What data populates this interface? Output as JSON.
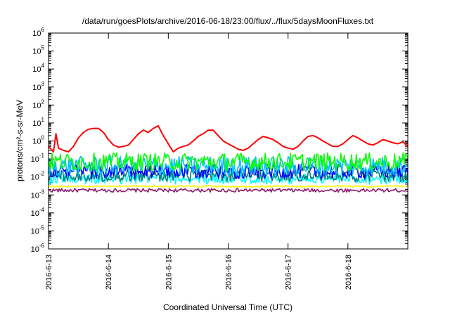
{
  "chart_data": {
    "type": "line",
    "title": "/data/run/goesPlots/archive/2016-06-18/23:00/flux/../flux/5daysMoonFluxes.txt",
    "xlabel": "Coordinated Universal Time (UTC)",
    "ylabel": "protons/cm²-s-sr-MeV",
    "x_axis": {
      "type": "date",
      "range": [
        "2016-06-13",
        "2016-06-19"
      ],
      "ticks": [
        "2016-6-13",
        "2016-6-14",
        "2016-6-15",
        "2016-6-16",
        "2016-6-17",
        "2016-6-18"
      ]
    },
    "y_axis": {
      "scale": "log",
      "range": [
        1e-06,
        1000000.0
      ],
      "ticks": [
        {
          "base": "10",
          "exp": "-6"
        },
        {
          "base": "10",
          "exp": "-5"
        },
        {
          "base": "10",
          "exp": "-4"
        },
        {
          "base": "10",
          "exp": "-3"
        },
        {
          "base": "10",
          "exp": "-2"
        },
        {
          "base": "10",
          "exp": "-1"
        },
        {
          "base": "10",
          "exp": "0"
        },
        {
          "base": "10",
          "exp": "1"
        },
        {
          "base": "10",
          "exp": "2"
        },
        {
          "base": "10",
          "exp": "3"
        },
        {
          "base": "10",
          "exp": "4"
        },
        {
          "base": "10",
          "exp": "5"
        },
        {
          "base": "10",
          "exp": "6"
        }
      ]
    },
    "grid": false,
    "legend": "none",
    "series": [
      {
        "color": "#ff0000",
        "values": [
          [
            "2016-06-13 00:00",
            0.5
          ],
          [
            "2016-06-13 02:00",
            0.25
          ],
          [
            "2016-06-13 03:00",
            2.5
          ],
          [
            "2016-06-13 04:00",
            0.4
          ],
          [
            "2016-06-13 06:00",
            0.3
          ],
          [
            "2016-06-13 08:00",
            0.25
          ],
          [
            "2016-06-13 10:00",
            0.5
          ],
          [
            "2016-06-13 12:00",
            1.5
          ],
          [
            "2016-06-13 14:00",
            3
          ],
          [
            "2016-06-13 16:00",
            4.5
          ],
          [
            "2016-06-13 18:00",
            5
          ],
          [
            "2016-06-13 20:00",
            5
          ],
          [
            "2016-06-13 22:00",
            3
          ],
          [
            "2016-06-14 00:00",
            1.2
          ],
          [
            "2016-06-14 02:00",
            0.6
          ],
          [
            "2016-06-14 04:00",
            0.45
          ],
          [
            "2016-06-14 06:00",
            0.5
          ],
          [
            "2016-06-14 08:00",
            0.6
          ],
          [
            "2016-06-14 10:00",
            1.2
          ],
          [
            "2016-06-14 12:00",
            2.5
          ],
          [
            "2016-06-14 14:00",
            4
          ],
          [
            "2016-06-14 16:00",
            3
          ],
          [
            "2016-06-14 18:00",
            5
          ],
          [
            "2016-06-14 20:00",
            7
          ],
          [
            "2016-06-14 22:00",
            2
          ],
          [
            "2016-06-15 00:00",
            0.7
          ],
          [
            "2016-06-15 02:00",
            0.25
          ],
          [
            "2016-06-15 04:00",
            0.4
          ],
          [
            "2016-06-15 06:00",
            0.5
          ],
          [
            "2016-06-15 08:00",
            0.6
          ],
          [
            "2016-06-15 10:00",
            1
          ],
          [
            "2016-06-15 12:00",
            1.8
          ],
          [
            "2016-06-15 14:00",
            2.5
          ],
          [
            "2016-06-15 16:00",
            4
          ],
          [
            "2016-06-15 18:00",
            4
          ],
          [
            "2016-06-15 20:00",
            2
          ],
          [
            "2016-06-15 22:00",
            1
          ],
          [
            "2016-06-16 00:00",
            0.7
          ],
          [
            "2016-06-16 02:00",
            0.5
          ],
          [
            "2016-06-16 04:00",
            0.35
          ],
          [
            "2016-06-16 06:00",
            0.3
          ],
          [
            "2016-06-16 08:00",
            0.4
          ],
          [
            "2016-06-16 10:00",
            0.7
          ],
          [
            "2016-06-16 12:00",
            1.2
          ],
          [
            "2016-06-16 14:00",
            1.8
          ],
          [
            "2016-06-16 16:00",
            1.5
          ],
          [
            "2016-06-16 18:00",
            1.2
          ],
          [
            "2016-06-16 20:00",
            0.8
          ],
          [
            "2016-06-16 22:00",
            0.5
          ],
          [
            "2016-06-17 00:00",
            0.4
          ],
          [
            "2016-06-17 02:00",
            0.35
          ],
          [
            "2016-06-17 04:00",
            0.5
          ],
          [
            "2016-06-17 06:00",
            1
          ],
          [
            "2016-06-17 08:00",
            1.8
          ],
          [
            "2016-06-17 10:00",
            2
          ],
          [
            "2016-06-17 12:00",
            1.5
          ],
          [
            "2016-06-17 14:00",
            1
          ],
          [
            "2016-06-17 16:00",
            0.7
          ],
          [
            "2016-06-17 18:00",
            0.5
          ],
          [
            "2016-06-17 20:00",
            0.5
          ],
          [
            "2016-06-17 22:00",
            0.7
          ],
          [
            "2016-06-18 00:00",
            1.2
          ],
          [
            "2016-06-18 02:00",
            2
          ],
          [
            "2016-06-18 04:00",
            1.5
          ],
          [
            "2016-06-18 06:00",
            1
          ],
          [
            "2016-06-18 08:00",
            0.7
          ],
          [
            "2016-06-18 10:00",
            0.6
          ],
          [
            "2016-06-18 12:00",
            0.8
          ],
          [
            "2016-06-18 14:00",
            1.2
          ],
          [
            "2016-06-18 16:00",
            1
          ],
          [
            "2016-06-18 18:00",
            0.8
          ],
          [
            "2016-06-18 20:00",
            0.7
          ],
          [
            "2016-06-18 22:00",
            0.9
          ],
          [
            "2016-06-18 24:00",
            0.5
          ]
        ]
      },
      {
        "color": "#00ff00",
        "base": 0.07,
        "spread": 0.5
      },
      {
        "color": "#00c0ff",
        "base": 0.04,
        "spread": 0.55
      },
      {
        "color": "#0000ff",
        "base": 0.02,
        "spread": 0.4
      },
      {
        "color": "#008080",
        "base": 0.012,
        "spread": 0.35
      },
      {
        "color": "#00ffff",
        "base": 0.008,
        "spread": 0.3
      },
      {
        "color": "#ffff00",
        "base": 0.003,
        "spread": 0.05
      },
      {
        "color": "#8b1a6b",
        "base": 0.0018,
        "spread": 0.1
      }
    ]
  }
}
